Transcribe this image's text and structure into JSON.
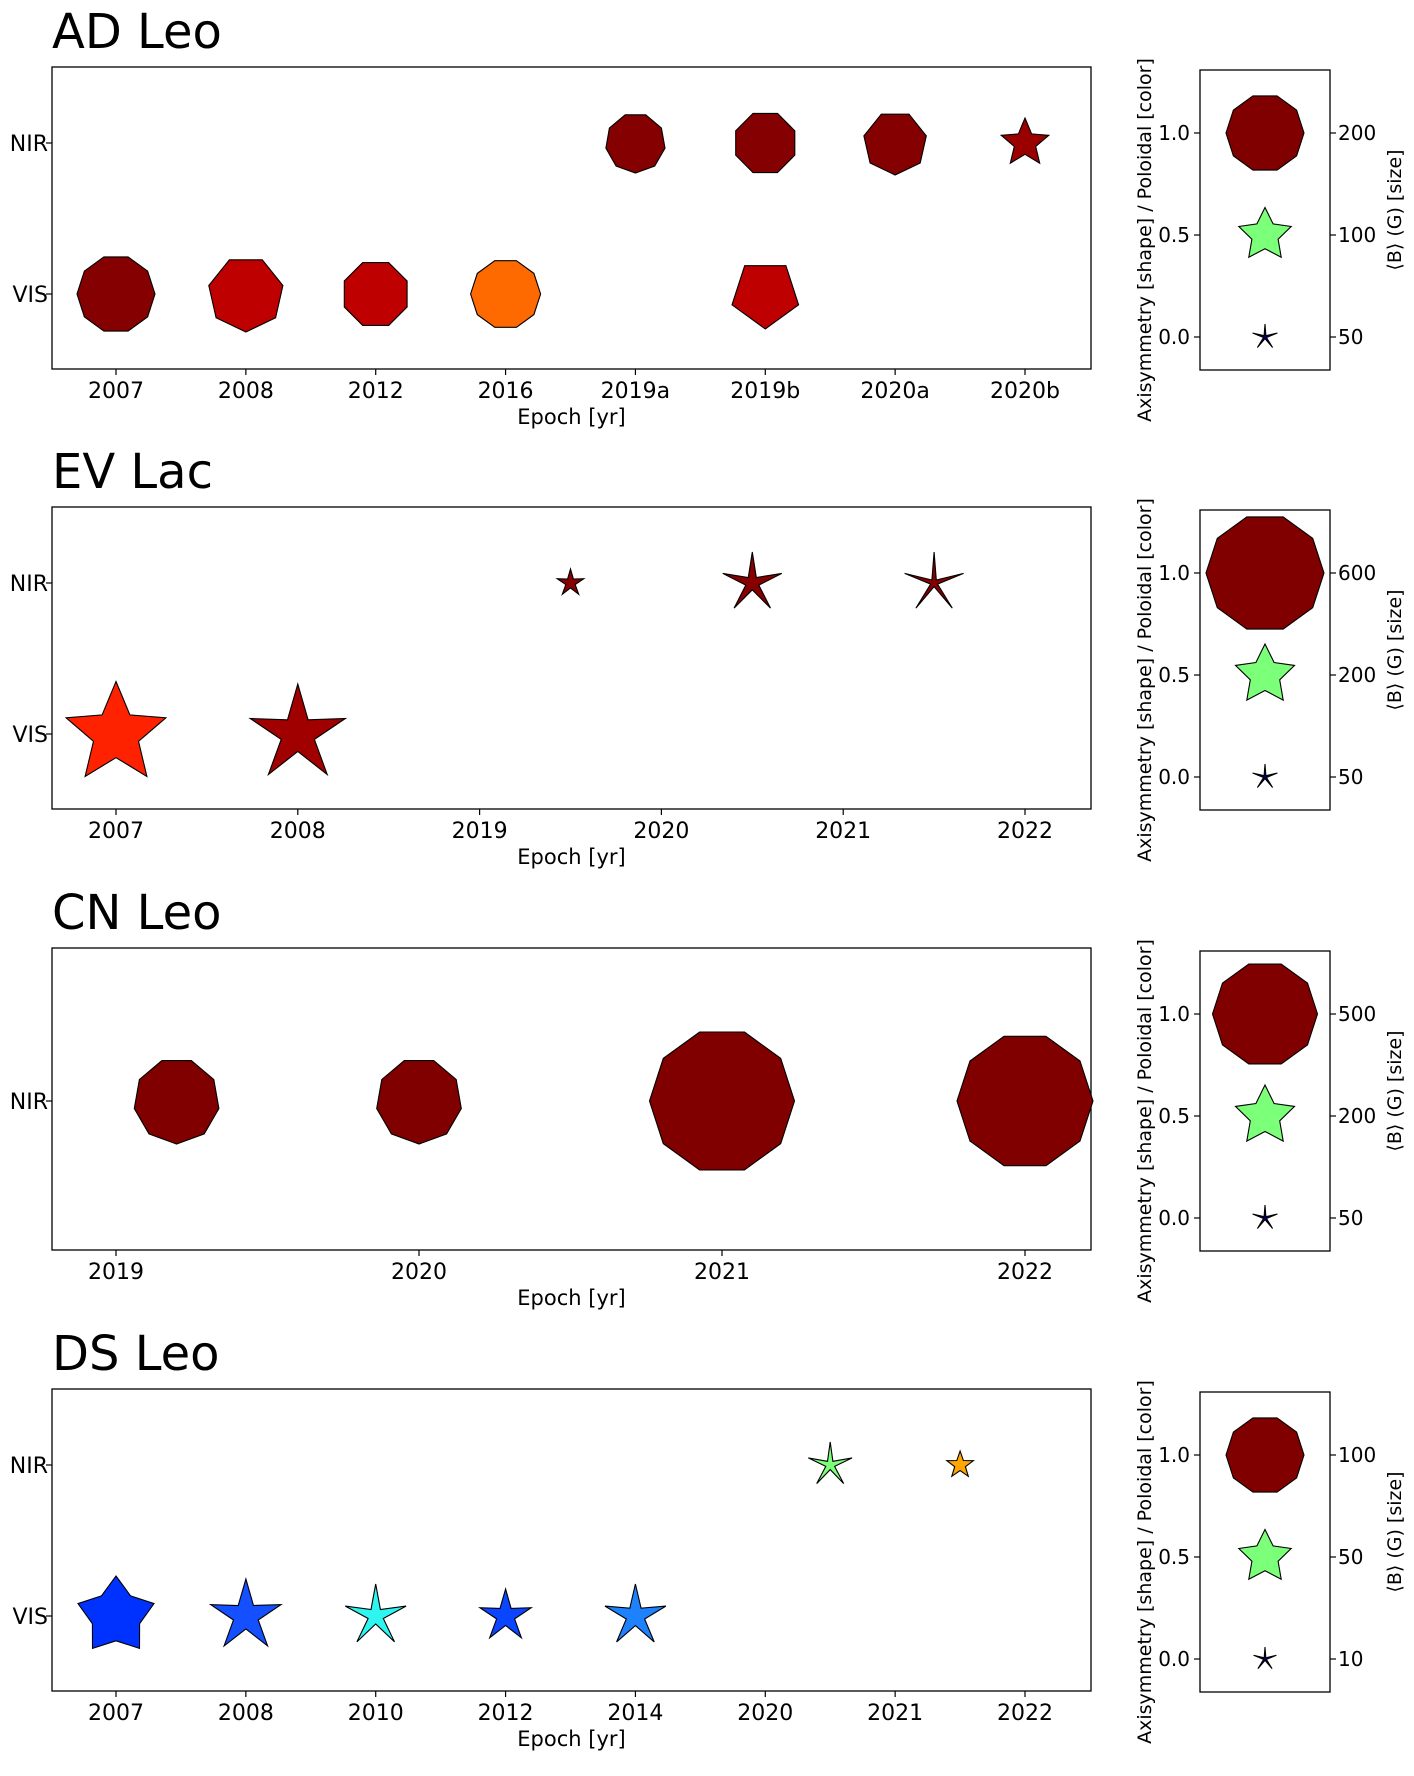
{
  "colors": {
    "axis": "#000000",
    "marker_edge": "#000000",
    "background": "#ffffff"
  },
  "chart_data": [
    {
      "type": "scatter",
      "title": "AD Leo",
      "xlabel": "Epoch [yr]",
      "categories": [
        "2007",
        "2008",
        "2012",
        "2016",
        "2019a",
        "2019b",
        "2020a",
        "2020b"
      ],
      "rows": [
        "NIR",
        "VIS"
      ],
      "points": [
        {
          "row": "VIS",
          "x": 0,
          "shape": "polygon",
          "sides": 10,
          "size": 0.78,
          "color": "#850000"
        },
        {
          "row": "VIS",
          "x": 1,
          "shape": "polygon",
          "sides": 7,
          "size": 0.76,
          "color": "#bf0000"
        },
        {
          "row": "VIS",
          "x": 2,
          "shape": "polygon",
          "sides": 8,
          "size": 0.68,
          "color": "#bf0000"
        },
        {
          "row": "VIS",
          "x": 3,
          "shape": "polygon",
          "sides": 10,
          "size": 0.7,
          "color": "#ff6a00"
        },
        {
          "row": "VIS",
          "x": 5,
          "shape": "polygon",
          "sides": 5,
          "size": 0.7,
          "color": "#bf0000"
        },
        {
          "row": "NIR",
          "x": 4,
          "shape": "polygon",
          "sides": 9,
          "size": 0.6,
          "color": "#850000"
        },
        {
          "row": "NIR",
          "x": 5,
          "shape": "polygon",
          "sides": 8,
          "size": 0.64,
          "color": "#850000"
        },
        {
          "row": "NIR",
          "x": 6,
          "shape": "polygon",
          "sides": 7,
          "size": 0.64,
          "color": "#850000"
        },
        {
          "row": "NIR",
          "x": 7,
          "shape": "star",
          "points": 5,
          "inner": 0.45,
          "size": 0.5,
          "color": "#9a0000"
        }
      ],
      "legend": {
        "ylabel": "Axisymmetry [shape] / Poloidal [color]",
        "y2label": "⟨B⟩ (G) [size]",
        "yticks": [
          "1.0",
          "0.5",
          "0.0"
        ],
        "y2ticks": [
          "200",
          "100",
          "50"
        ],
        "markers": [
          {
            "y": 1.0,
            "shape": "polygon",
            "sides": 10,
            "size": 0.78,
            "color": "#800000"
          },
          {
            "y": 0.5,
            "shape": "star",
            "points": 5,
            "inner": 0.5,
            "size": 0.55,
            "color": "#7cff79"
          },
          {
            "y": 0.0,
            "shape": "star",
            "points": 5,
            "inner": 0.12,
            "size": 0.26,
            "color": "#000080"
          }
        ]
      }
    },
    {
      "type": "scatter",
      "title": "EV Lac",
      "xlabel": "Epoch [yr]",
      "categories": [
        "2007",
        "2008",
        "2019",
        "2020",
        "2021",
        "2022"
      ],
      "rows": [
        "NIR",
        "VIS"
      ],
      "points": [
        {
          "row": "VIS",
          "x": 0,
          "shape": "star",
          "points": 5,
          "inner": 0.45,
          "size": 1.05,
          "color": "#ff2200"
        },
        {
          "row": "VIS",
          "x": 1,
          "shape": "star",
          "points": 5,
          "inner": 0.35,
          "size": 1.0,
          "color": "#a00000"
        },
        {
          "row": "NIR",
          "x": 2.5,
          "shape": "star",
          "points": 5,
          "inner": 0.35,
          "size": 0.28,
          "color": "#850000"
        },
        {
          "row": "NIR",
          "x": 3.5,
          "shape": "star",
          "points": 5,
          "inner": 0.22,
          "size": 0.62,
          "color": "#850000"
        },
        {
          "row": "NIR",
          "x": 4.5,
          "shape": "star",
          "points": 5,
          "inner": 0.12,
          "size": 0.62,
          "color": "#850000"
        }
      ],
      "legend": {
        "ylabel": "Axisymmetry [shape] / Poloidal [color]",
        "y2label": "⟨B⟩ (G) [size]",
        "yticks": [
          "1.0",
          "0.5",
          "0.0"
        ],
        "y2ticks": [
          "600",
          "200",
          "50"
        ],
        "markers": [
          {
            "y": 1.0,
            "shape": "polygon",
            "sides": 10,
            "size": 1.18,
            "color": "#800000"
          },
          {
            "y": 0.5,
            "shape": "star",
            "points": 5,
            "inner": 0.5,
            "size": 0.62,
            "color": "#7cff79"
          },
          {
            "y": 0.0,
            "shape": "star",
            "points": 5,
            "inner": 0.12,
            "size": 0.26,
            "color": "#000080"
          }
        ]
      }
    },
    {
      "type": "scatter",
      "title": "CN Leo",
      "xlabel": "Epoch [yr]",
      "categories": [
        "2019",
        "2020",
        "2021",
        "2022"
      ],
      "rows": [
        "NIR"
      ],
      "points": [
        {
          "row": "NIR",
          "x": 0.2,
          "shape": "polygon",
          "sides": 9,
          "size": 0.86,
          "color": "#800000"
        },
        {
          "row": "NIR",
          "x": 1.0,
          "shape": "polygon",
          "sides": 9,
          "size": 0.86,
          "color": "#800000"
        },
        {
          "row": "NIR",
          "x": 2.0,
          "shape": "polygon",
          "sides": 10,
          "size": 1.45,
          "color": "#800000"
        },
        {
          "row": "NIR",
          "x": 3.0,
          "shape": "polygon",
          "sides": 10,
          "size": 1.36,
          "color": "#800000"
        }
      ],
      "legend": {
        "ylabel": "Axisymmetry [shape] / Poloidal [color]",
        "y2label": "⟨B⟩ (G) [size]",
        "yticks": [
          "1.0",
          "0.5",
          "0.0"
        ],
        "y2ticks": [
          "500",
          "200",
          "50"
        ],
        "markers": [
          {
            "y": 1.0,
            "shape": "polygon",
            "sides": 10,
            "size": 1.05,
            "color": "#800000"
          },
          {
            "y": 0.5,
            "shape": "star",
            "points": 5,
            "inner": 0.5,
            "size": 0.62,
            "color": "#7cff79"
          },
          {
            "y": 0.0,
            "shape": "star",
            "points": 5,
            "inner": 0.12,
            "size": 0.26,
            "color": "#000080"
          }
        ]
      }
    },
    {
      "type": "scatter",
      "title": "DS Leo",
      "xlabel": "Epoch [yr]",
      "categories": [
        "2007",
        "2008",
        "2010",
        "2012",
        "2014",
        "2020",
        "2021",
        "2022"
      ],
      "rows": [
        "NIR",
        "VIS"
      ],
      "points": [
        {
          "row": "VIS",
          "x": 0,
          "shape": "star",
          "points": 5,
          "inner": 0.62,
          "size": 0.8,
          "color": "#0032ff"
        },
        {
          "row": "VIS",
          "x": 1,
          "shape": "star",
          "points": 5,
          "inner": 0.35,
          "size": 0.74,
          "color": "#1450ff"
        },
        {
          "row": "VIS",
          "x": 2,
          "shape": "star",
          "points": 5,
          "inner": 0.25,
          "size": 0.64,
          "color": "#2ef5f0"
        },
        {
          "row": "VIS",
          "x": 3,
          "shape": "star",
          "points": 5,
          "inner": 0.35,
          "size": 0.54,
          "color": "#0a46ff"
        },
        {
          "row": "VIS",
          "x": 4,
          "shape": "star",
          "points": 5,
          "inner": 0.3,
          "size": 0.64,
          "color": "#1e82ff"
        },
        {
          "row": "NIR",
          "x": 5.5,
          "shape": "star",
          "points": 5,
          "inner": 0.2,
          "size": 0.46,
          "color": "#7cff79"
        },
        {
          "row": "NIR",
          "x": 6.5,
          "shape": "star",
          "points": 5,
          "inner": 0.4,
          "size": 0.28,
          "color": "#ffa600"
        }
      ],
      "legend": {
        "ylabel": "Axisymmetry [shape] / Poloidal [color]",
        "y2label": "⟨B⟩ (G) [size]",
        "yticks": [
          "1.0",
          "0.5",
          "0.0"
        ],
        "y2ticks": [
          "100",
          "50",
          "10"
        ],
        "markers": [
          {
            "y": 1.0,
            "shape": "polygon",
            "sides": 10,
            "size": 0.78,
            "color": "#800000"
          },
          {
            "y": 0.5,
            "shape": "star",
            "points": 5,
            "inner": 0.5,
            "size": 0.55,
            "color": "#7cff79"
          },
          {
            "y": 0.0,
            "shape": "star",
            "points": 5,
            "inner": 0.12,
            "size": 0.24,
            "color": "#000080"
          }
        ]
      }
    }
  ]
}
